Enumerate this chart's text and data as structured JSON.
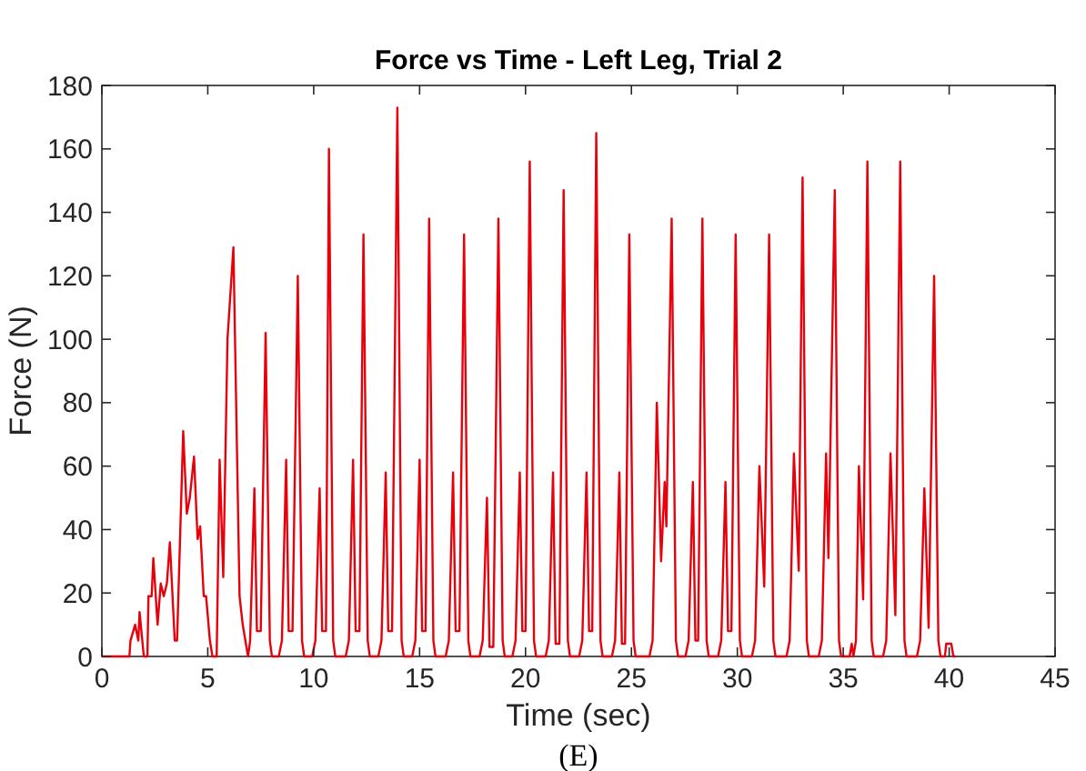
{
  "chart_data": {
    "type": "line",
    "title": "Force vs Time - Left Leg, Trial 2",
    "xlabel": "Time (sec)",
    "ylabel": "Force (N)",
    "annotations": [
      "(E)"
    ],
    "xlim": [
      0,
      45
    ],
    "xticks": [
      0,
      5,
      10,
      15,
      20,
      25,
      30,
      35,
      40,
      45
    ],
    "ylim": [
      0,
      180
    ],
    "yticks": [
      0,
      20,
      40,
      60,
      80,
      100,
      120,
      140,
      160,
      180
    ],
    "grid": false,
    "marker": "none",
    "line_style": "solid",
    "series": [
      {
        "color": "#e8000b",
        "x": [
          0,
          1.3,
          1.35,
          1.57,
          1.72,
          1.78,
          1.98,
          2.15,
          2.2,
          2.35,
          2.43,
          2.63,
          2.78,
          2.92,
          3.07,
          3.21,
          3.44,
          3.55,
          3.84,
          4.01,
          4.15,
          4.35,
          4.52,
          4.64,
          4.81,
          4.92,
          5.1,
          5.22,
          5.42,
          5.56,
          5.73,
          5.93,
          6.21,
          6.5,
          6.65,
          6.9,
          7.0,
          7.2,
          7.32,
          7.5,
          7.73,
          7.93,
          8.03,
          8.35,
          8.5,
          8.7,
          8.82,
          9.0,
          9.25,
          9.45,
          9.55,
          9.93,
          10.08,
          10.28,
          10.4,
          10.58,
          10.72,
          10.92,
          11.02,
          11.51,
          11.66,
          11.86,
          11.98,
          12.16,
          12.35,
          12.55,
          12.65,
          13.05,
          13.2,
          13.4,
          13.52,
          13.7,
          13.95,
          14.15,
          14.25,
          14.65,
          14.8,
          15.0,
          15.12,
          15.28,
          15.45,
          15.65,
          15.75,
          16.23,
          16.38,
          16.58,
          16.7,
          16.88,
          17.1,
          17.3,
          17.4,
          17.83,
          17.98,
          18.18,
          18.3,
          18.48,
          18.72,
          18.92,
          19.02,
          19.38,
          19.53,
          19.73,
          19.85,
          20.0,
          20.2,
          20.4,
          20.5,
          20.95,
          21.1,
          21.3,
          21.42,
          21.6,
          21.8,
          22.0,
          22.1,
          22.53,
          22.68,
          22.88,
          23.0,
          23.15,
          23.34,
          23.54,
          23.64,
          24.08,
          24.23,
          24.43,
          24.55,
          24.7,
          24.9,
          25.1,
          25.2,
          25.85,
          26.0,
          26.2,
          26.4,
          26.57,
          26.65,
          26.9,
          27.1,
          27.2,
          27.55,
          27.7,
          27.9,
          28.02,
          28.15,
          28.35,
          28.55,
          28.65,
          29.09,
          29.24,
          29.44,
          29.56,
          29.72,
          29.92,
          30.12,
          30.22,
          30.69,
          30.84,
          31.04,
          31.27,
          31.5,
          31.7,
          31.8,
          32.32,
          32.47,
          32.67,
          32.9,
          33.08,
          33.28,
          33.38,
          33.84,
          33.99,
          34.19,
          34.3,
          34.6,
          34.8,
          34.9,
          35.3,
          35.4,
          35.48,
          35.6,
          35.74,
          35.94,
          36.14,
          36.34,
          36.44,
          36.88,
          37.03,
          37.23,
          37.46,
          37.69,
          37.89,
          37.99,
          38.48,
          38.63,
          38.83,
          39.03,
          39.29,
          39.49,
          39.59,
          39.8,
          39.86,
          40.1,
          40.2,
          40.3
        ],
        "values": [
          0,
          0,
          5,
          10,
          5,
          14,
          0,
          0,
          19,
          19,
          31,
          10,
          23,
          19,
          23,
          36,
          5,
          5,
          71,
          45,
          50,
          63,
          37,
          41,
          19,
          19,
          5,
          0,
          0,
          62,
          25,
          100,
          129,
          19,
          10,
          0,
          5,
          53,
          8,
          8,
          102,
          5,
          0,
          0,
          5,
          62,
          8,
          8,
          120,
          5,
          0,
          0,
          5,
          53,
          8,
          8,
          160,
          5,
          0,
          0,
          5,
          62,
          8,
          8,
          133,
          5,
          0,
          0,
          5,
          58,
          8,
          8,
          173,
          5,
          0,
          0,
          5,
          62,
          8,
          8,
          138,
          5,
          0,
          0,
          5,
          58,
          8,
          8,
          133,
          5,
          0,
          0,
          5,
          50,
          3,
          3,
          138,
          5,
          0,
          0,
          5,
          58,
          8,
          8,
          156,
          5,
          0,
          0,
          5,
          58,
          4,
          4,
          147,
          5,
          0,
          0,
          5,
          58,
          8,
          8,
          165,
          5,
          0,
          0,
          5,
          58,
          4,
          4,
          133,
          5,
          0,
          0,
          5,
          80,
          30,
          55,
          41,
          138,
          5,
          0,
          0,
          5,
          55,
          5,
          5,
          138,
          5,
          0,
          0,
          5,
          55,
          8,
          8,
          133,
          5,
          0,
          0,
          5,
          60,
          22,
          133,
          5,
          0,
          0,
          5,
          64,
          27,
          151,
          5,
          0,
          0,
          5,
          64,
          31,
          147,
          5,
          0,
          0,
          4,
          0,
          5,
          60,
          18,
          156,
          5,
          0,
          0,
          5,
          64,
          13,
          156,
          5,
          0,
          0,
          5,
          53,
          9,
          120,
          5,
          0,
          0,
          4,
          4,
          0,
          0
        ]
      }
    ]
  }
}
